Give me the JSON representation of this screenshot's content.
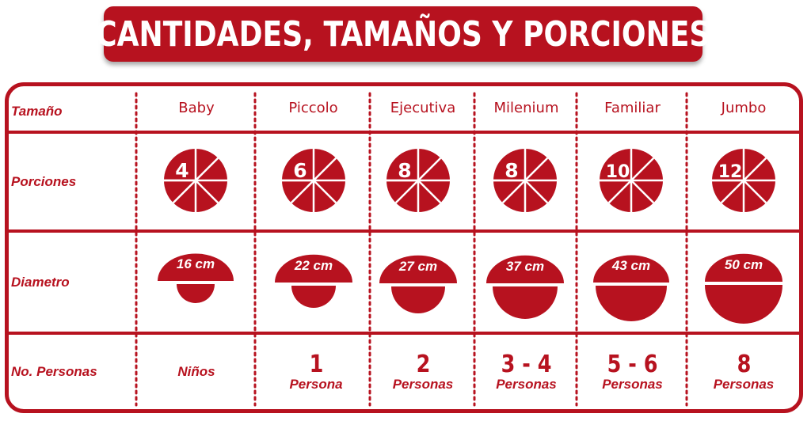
{
  "title": "CANTIDADES, TAMAÑOS Y PORCIONES",
  "colors": {
    "brand_red": "#b7121f",
    "background": "#ffffff"
  },
  "row_labels": {
    "size": "Tamaño",
    "portions": "Porciones",
    "diameter": "Diametro",
    "people": "No. Personas"
  },
  "sizes": [
    {
      "name": "Baby",
      "portions": "4",
      "diameter": "16 cm",
      "people_number": "",
      "people_word": "Niños"
    },
    {
      "name": "Piccolo",
      "portions": "6",
      "diameter": "22 cm",
      "people_number": "1",
      "people_word": "Persona"
    },
    {
      "name": "Ejecutiva",
      "portions": "8",
      "diameter": "27 cm",
      "people_number": "2",
      "people_word": "Personas"
    },
    {
      "name": "Milenium",
      "portions": "8",
      "diameter": "37 cm",
      "people_number": "3 - 4",
      "people_word": "Personas"
    },
    {
      "name": "Familiar",
      "portions": "10",
      "diameter": "43 cm",
      "people_number": "5 - 6",
      "people_word": "Personas"
    },
    {
      "name": "Jumbo",
      "portions": "12",
      "diameter": "50 cm",
      "people_number": "8",
      "people_word": "Personas"
    }
  ]
}
